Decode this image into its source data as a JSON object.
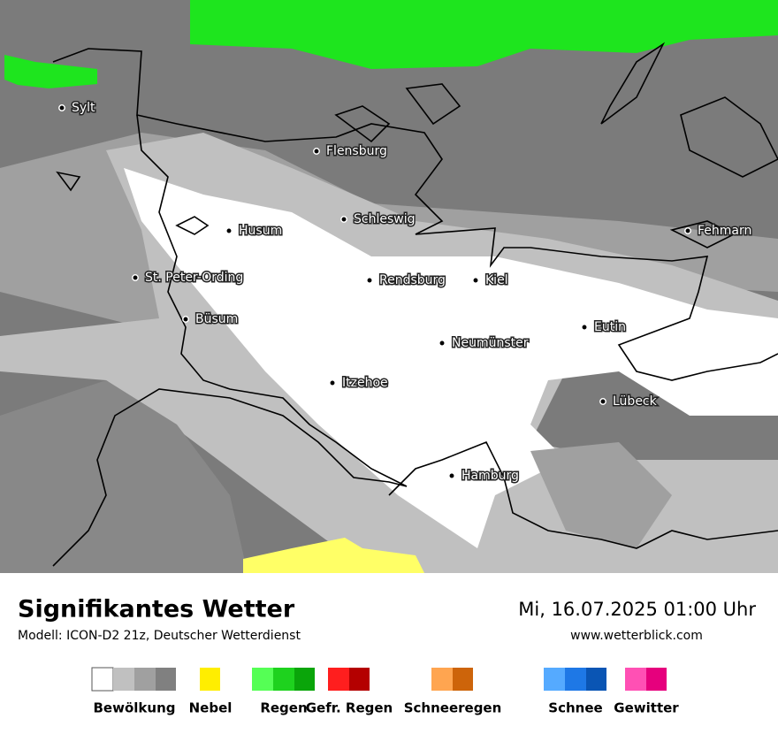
{
  "map": {
    "cities": [
      "Sylt",
      "Flensburg",
      "Schleswig",
      "Husum",
      "Fehmarn",
      "St. Peter-Ording",
      "Rendsburg",
      "Kiel",
      "Büsum",
      "Eutin",
      "Neumünster",
      "Itzehoe",
      "Lübeck",
      "Hamburg"
    ]
  },
  "footer": {
    "title": "Signifikantes Wetter",
    "subtitle": "Modell: ICON-D2 21z, Deutscher Wetterdienst",
    "datetime": "Mi, 16.07.2025 01:00 Uhr",
    "website": "www.wetterblick.com"
  },
  "legend": [
    {
      "label": "Bewölkung",
      "colors": [
        "#ffffff",
        "#c0c0c0",
        "#a0a0a0",
        "#808080"
      ]
    },
    {
      "label": "Nebel",
      "colors": [
        "#ffee00"
      ]
    },
    {
      "label": "Regen",
      "colors": [
        "#55ff55",
        "#1ed21e",
        "#0aa50a"
      ]
    },
    {
      "label": "Gefr. Regen",
      "colors": [
        "#ff1e1e",
        "#b40000"
      ]
    },
    {
      "label": "Schneeregen",
      "colors": [
        "#ffa550",
        "#cd640a"
      ]
    },
    {
      "label": "Schnee",
      "colors": [
        "#55aaff",
        "#1e78e6",
        "#0a55b4"
      ]
    },
    {
      "label": "Gewitter",
      "colors": [
        "#ff50b4",
        "#e6007d"
      ]
    }
  ]
}
